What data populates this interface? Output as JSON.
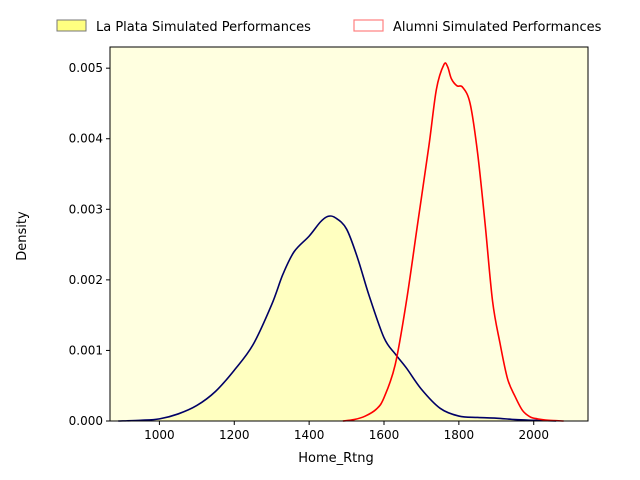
{
  "chart_data": {
    "type": "area",
    "xlabel": "Home_Rtng",
    "ylabel": "Density",
    "xlim": [
      868,
      2145
    ],
    "ylim": [
      0,
      0.0053
    ],
    "xticks": [
      1000,
      1200,
      1400,
      1600,
      1800,
      2000
    ],
    "yticks": [
      0.0,
      0.001,
      0.002,
      0.003,
      0.004,
      0.005
    ],
    "xtick_labels": [
      "1000",
      "1200",
      "1400",
      "1600",
      "1800",
      "2000"
    ],
    "ytick_labels": [
      "0.000",
      "0.001",
      "0.002",
      "0.003",
      "0.004",
      "0.005"
    ],
    "grid": false,
    "legend_position": "top",
    "background": "#ffffe0",
    "series": [
      {
        "name": "La Plata Simulated Performances",
        "line_color": "#000066",
        "fill_color": "#ffffc0",
        "legend_patch_color": "#ffff80",
        "x": [
          890,
          950,
          1000,
          1050,
          1100,
          1150,
          1200,
          1250,
          1300,
          1330,
          1360,
          1400,
          1430,
          1450,
          1470,
          1500,
          1530,
          1560,
          1600,
          1630,
          1660,
          1700,
          1750,
          1800,
          1850,
          1900,
          1950,
          2000,
          2060
        ],
        "y": [
          0.0,
          1e-05,
          3e-05,
          0.0001,
          0.00022,
          0.00042,
          0.00072,
          0.00108,
          0.00165,
          0.00208,
          0.0024,
          0.00262,
          0.00282,
          0.0029,
          0.00288,
          0.00272,
          0.0023,
          0.00178,
          0.00118,
          0.00095,
          0.00075,
          0.00045,
          0.00018,
          7e-05,
          5e-05,
          4e-05,
          2e-05,
          1e-05,
          0.0
        ]
      },
      {
        "name": "Alumni Simulated Performances",
        "line_color": "#ff0000",
        "legend_patch_color": "#ff8080",
        "x": [
          1490,
          1520,
          1550,
          1580,
          1600,
          1630,
          1660,
          1690,
          1720,
          1740,
          1760,
          1770,
          1780,
          1795,
          1810,
          1830,
          1850,
          1870,
          1890,
          1910,
          1930,
          1950,
          1970,
          1990,
          2010,
          2040,
          2080
        ],
        "y": [
          0.0,
          2e-05,
          7e-05,
          0.00017,
          0.00033,
          0.0008,
          0.0017,
          0.0028,
          0.0039,
          0.0047,
          0.00505,
          0.00502,
          0.00485,
          0.00475,
          0.00473,
          0.0045,
          0.0038,
          0.0028,
          0.0017,
          0.0011,
          0.0006,
          0.00035,
          0.00015,
          6e-05,
          3e-05,
          1e-05,
          0.0
        ]
      }
    ]
  }
}
